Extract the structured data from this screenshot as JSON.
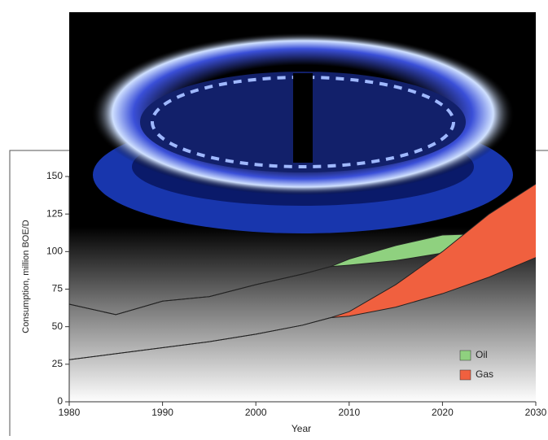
{
  "chart_data": {
    "type": "band",
    "x": [
      1980,
      1985,
      1990,
      1995,
      2000,
      2005,
      2008,
      2010,
      2015,
      2020,
      2025,
      2030
    ],
    "series": [
      {
        "name": "Oil",
        "color": "#8fd17f",
        "values": [
          65,
          58,
          67,
          70,
          78,
          85,
          90,
          95,
          104,
          111,
          112,
          107
        ],
        "low": [
          65,
          58,
          67,
          70,
          78,
          85,
          90,
          91,
          94,
          99,
          101,
          104
        ]
      },
      {
        "name": "Gas",
        "color": "#f0603f",
        "values": [
          28,
          32,
          36,
          40,
          45,
          51,
          56,
          60,
          78,
          100,
          125,
          145
        ],
        "low": [
          28,
          32,
          36,
          40,
          45,
          51,
          56,
          57,
          63,
          72,
          83,
          96
        ]
      }
    ],
    "xlim": [
      1980,
      2030
    ],
    "xticks": [
      1980,
      1990,
      2000,
      2010,
      2020,
      2030
    ],
    "ylim": [
      0,
      150
    ],
    "yticks": [
      0,
      25,
      50,
      75,
      100,
      125,
      150
    ],
    "xlabel": "Year",
    "ylabel": "Consumption, million BOE/D"
  }
}
